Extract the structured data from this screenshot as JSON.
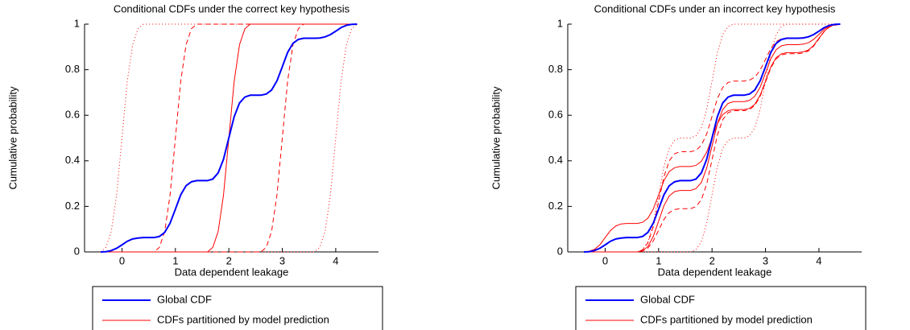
{
  "chart_data": [
    {
      "type": "line",
      "title": "Conditional CDFs under the correct key hypothesis",
      "x_label": "Data dependent leakage",
      "y_label": "Cumulative probability",
      "x": [
        -0.4,
        -0.3,
        -0.2,
        -0.1,
        0,
        0.1,
        0.2,
        0.3,
        0.4,
        0.5,
        0.6,
        0.7,
        0.8,
        0.9,
        1,
        1.1,
        1.2,
        1.3,
        1.4,
        1.5,
        1.6,
        1.7,
        1.8,
        1.9,
        2,
        2.1,
        2.2,
        2.3,
        2.4,
        2.5,
        2.6,
        2.7,
        2.8,
        2.9,
        3,
        3.1,
        3.2,
        3.3,
        3.4,
        3.5,
        3.6,
        3.7,
        3.8,
        3.9,
        4,
        4.1,
        4.2,
        4.3,
        4.4
      ],
      "xlim": [
        -0.7,
        4.8
      ],
      "ylim": [
        0,
        1
      ],
      "xticks": [
        0,
        1,
        2,
        3,
        4
      ],
      "yticks": [
        0,
        0.2,
        0.4,
        0.6,
        0.8,
        1
      ],
      "series": [
        {
          "name": "Global CDF",
          "color": "#0000ff",
          "values": [
            0,
            0.001,
            0.006,
            0.016,
            0.031,
            0.047,
            0.057,
            0.061,
            0.063,
            0.063,
            0.063,
            0.068,
            0.086,
            0.126,
            0.188,
            0.251,
            0.291,
            0.308,
            0.313,
            0.313,
            0.313,
            0.32,
            0.347,
            0.407,
            0.501,
            0.594,
            0.654,
            0.68,
            0.688,
            0.688,
            0.688,
            0.693,
            0.711,
            0.751,
            0.813,
            0.876,
            0.916,
            0.933,
            0.938,
            0.938,
            0.938,
            0.939,
            0.944,
            0.954,
            0.969,
            0.985,
            0.995,
            0.999,
            1
          ]
        },
        {
          "name": "CDFs partitioned by model prediction",
          "color": "#ff0000",
          "curves": [
            {
              "dash": "dotted",
              "values": [
                0,
                0.02,
                0.09,
                0.25,
                0.5,
                0.75,
                0.91,
                0.98,
                1,
                1,
                1,
                1,
                1,
                1,
                1,
                1,
                1,
                1,
                1,
                1,
                1,
                1,
                1,
                1,
                1,
                1,
                1,
                1,
                1,
                1,
                1,
                1,
                1,
                1,
                1,
                1,
                1,
                1,
                1,
                1,
                1,
                1,
                1,
                1,
                1,
                1,
                1,
                1,
                1
              ]
            },
            {
              "dash": "dashed",
              "values": [
                0,
                0,
                0,
                0,
                0,
                0,
                0,
                0,
                0,
                0,
                0,
                0.02,
                0.09,
                0.25,
                0.5,
                0.75,
                0.91,
                0.98,
                1,
                1,
                1,
                1,
                1,
                1,
                1,
                1,
                1,
                1,
                1,
                1,
                1,
                1,
                1,
                1,
                1,
                1,
                1,
                1,
                1,
                1,
                1,
                1,
                1,
                1,
                1,
                1,
                1,
                1,
                1
              ]
            },
            {
              "dash": "solid",
              "values": [
                0,
                0,
                0,
                0,
                0,
                0,
                0,
                0,
                0,
                0,
                0,
                0,
                0,
                0,
                0,
                0,
                0,
                0,
                0,
                0,
                0,
                0.02,
                0.09,
                0.25,
                0.5,
                0.75,
                0.91,
                0.98,
                1,
                1,
                1,
                1,
                1,
                1,
                1,
                1,
                1,
                1,
                1,
                1,
                1,
                1,
                1,
                1,
                1,
                1,
                1,
                1,
                1
              ]
            },
            {
              "dash": "dashed",
              "values": [
                0,
                0,
                0,
                0,
                0,
                0,
                0,
                0,
                0,
                0,
                0,
                0,
                0,
                0,
                0,
                0,
                0,
                0,
                0,
                0,
                0,
                0,
                0,
                0,
                0,
                0,
                0,
                0,
                0,
                0,
                0,
                0.02,
                0.09,
                0.25,
                0.5,
                0.75,
                0.91,
                0.98,
                1,
                1,
                1,
                1,
                1,
                1,
                1,
                1,
                1,
                1,
                1
              ]
            },
            {
              "dash": "dotted",
              "values": [
                0,
                0,
                0,
                0,
                0,
                0,
                0,
                0,
                0,
                0,
                0,
                0,
                0,
                0,
                0,
                0,
                0,
                0,
                0,
                0,
                0,
                0,
                0,
                0,
                0,
                0,
                0,
                0,
                0,
                0,
                0,
                0,
                0,
                0,
                0,
                0,
                0,
                0,
                0,
                0,
                0,
                0.02,
                0.09,
                0.25,
                0.5,
                0.75,
                0.91,
                0.98,
                1
              ]
            }
          ]
        }
      ]
    },
    {
      "type": "line",
      "title": "Conditional CDFs under an incorrect key hypothesis",
      "x_label": "Data dependent leakage",
      "y_label": "Cumulative probability",
      "x": [
        -0.4,
        -0.3,
        -0.2,
        -0.1,
        0,
        0.1,
        0.2,
        0.3,
        0.4,
        0.5,
        0.6,
        0.7,
        0.8,
        0.9,
        1,
        1.1,
        1.2,
        1.3,
        1.4,
        1.5,
        1.6,
        1.7,
        1.8,
        1.9,
        2,
        2.1,
        2.2,
        2.3,
        2.4,
        2.5,
        2.6,
        2.7,
        2.8,
        2.9,
        3,
        3.1,
        3.2,
        3.3,
        3.4,
        3.5,
        3.6,
        3.7,
        3.8,
        3.9,
        4,
        4.1,
        4.2,
        4.3,
        4.4
      ],
      "xlim": [
        -0.7,
        4.8
      ],
      "ylim": [
        0,
        1
      ],
      "xticks": [
        0,
        1,
        2,
        3,
        4
      ],
      "yticks": [
        0,
        0.2,
        0.4,
        0.6,
        0.8,
        1
      ],
      "series": [
        {
          "name": "Global CDF",
          "color": "#0000ff",
          "values": [
            0,
            0.001,
            0.006,
            0.016,
            0.031,
            0.047,
            0.057,
            0.061,
            0.063,
            0.063,
            0.063,
            0.068,
            0.086,
            0.126,
            0.188,
            0.251,
            0.291,
            0.308,
            0.313,
            0.313,
            0.313,
            0.32,
            0.347,
            0.407,
            0.501,
            0.594,
            0.654,
            0.68,
            0.688,
            0.688,
            0.688,
            0.693,
            0.711,
            0.751,
            0.813,
            0.876,
            0.916,
            0.933,
            0.938,
            0.938,
            0.938,
            0.939,
            0.944,
            0.954,
            0.969,
            0.985,
            0.995,
            0.999,
            1
          ]
        },
        {
          "name": "CDFs partitioned by model prediction",
          "color": "#ff0000",
          "curves": [
            {
              "dash": "dotted",
              "values": [
                0,
                0,
                0,
                0,
                0,
                0,
                0,
                0,
                0,
                0,
                0,
                0.01,
                0.045,
                0.125,
                0.25,
                0.375,
                0.455,
                0.49,
                0.5,
                0.5,
                0.5,
                0.51,
                0.545,
                0.625,
                0.75,
                0.875,
                0.955,
                0.99,
                1,
                1,
                1,
                1,
                1,
                1,
                1,
                1,
                1,
                1,
                1,
                1,
                1,
                1,
                1,
                1,
                1,
                1,
                1,
                1,
                1
              ]
            },
            {
              "dash": "dotted",
              "values": [
                0,
                0,
                0,
                0,
                0,
                0,
                0,
                0,
                0,
                0,
                0,
                0,
                0,
                0,
                0,
                0,
                0,
                0,
                0,
                0,
                0,
                0.01,
                0.045,
                0.125,
                0.25,
                0.375,
                0.455,
                0.49,
                0.5,
                0.5,
                0.5,
                0.51,
                0.545,
                0.625,
                0.75,
                0.875,
                0.955,
                0.99,
                1,
                1,
                1,
                1,
                1,
                1,
                1,
                1,
                1,
                1,
                1
              ]
            },
            {
              "dash": "dashed",
              "values": [
                0,
                0,
                0,
                0,
                0,
                0,
                0,
                0,
                0,
                0,
                0,
                0.009,
                0.04,
                0.11,
                0.22,
                0.33,
                0.4,
                0.431,
                0.44,
                0.44,
                0.44,
                0.446,
                0.468,
                0.518,
                0.595,
                0.673,
                0.722,
                0.744,
                0.75,
                0.75,
                0.75,
                0.754,
                0.767,
                0.798,
                0.845,
                0.893,
                0.923,
                0.936,
                0.94,
                0.94,
                0.94,
                0.941,
                0.945,
                0.955,
                0.97,
                0.985,
                0.995,
                0.999,
                1
              ]
            },
            {
              "dash": "dashed",
              "values": [
                0,
                0,
                0,
                0,
                0,
                0,
                0,
                0,
                0,
                0,
                0,
                0.004,
                0.017,
                0.048,
                0.095,
                0.143,
                0.173,
                0.186,
                0.19,
                0.19,
                0.19,
                0.199,
                0.229,
                0.298,
                0.405,
                0.513,
                0.581,
                0.611,
                0.62,
                0.62,
                0.62,
                0.625,
                0.643,
                0.683,
                0.745,
                0.808,
                0.848,
                0.865,
                0.87,
                0.87,
                0.87,
                0.873,
                0.882,
                0.903,
                0.935,
                0.968,
                0.988,
                0.995,
                1
              ]
            },
            {
              "dash": "solid",
              "values": [
                0,
                0.003,
                0.011,
                0.031,
                0.063,
                0.094,
                0.114,
                0.123,
                0.125,
                0.125,
                0.125,
                0.13,
                0.148,
                0.188,
                0.25,
                0.313,
                0.353,
                0.37,
                0.375,
                0.375,
                0.375,
                0.38,
                0.398,
                0.438,
                0.5,
                0.563,
                0.603,
                0.62,
                0.625,
                0.625,
                0.625,
                0.63,
                0.648,
                0.688,
                0.75,
                0.813,
                0.853,
                0.87,
                0.875,
                0.875,
                0.875,
                0.878,
                0.886,
                0.906,
                0.938,
                0.969,
                0.989,
                0.998,
                1
              ]
            },
            {
              "dash": "solid",
              "values": [
                0,
                0,
                0,
                0,
                0,
                0,
                0,
                0,
                0,
                0,
                0,
                0.005,
                0.024,
                0.068,
                0.135,
                0.203,
                0.246,
                0.265,
                0.27,
                0.27,
                0.27,
                0.278,
                0.305,
                0.368,
                0.465,
                0.563,
                0.625,
                0.652,
                0.66,
                0.66,
                0.66,
                0.665,
                0.683,
                0.723,
                0.785,
                0.848,
                0.888,
                0.905,
                0.91,
                0.91,
                0.91,
                0.912,
                0.918,
                0.933,
                0.955,
                0.978,
                0.992,
                0.998,
                1
              ]
            }
          ]
        }
      ]
    }
  ]
}
